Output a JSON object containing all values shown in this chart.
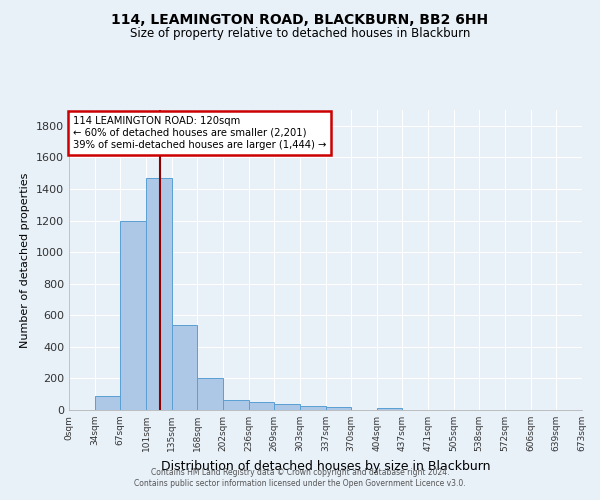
{
  "title": "114, LEAMINGTON ROAD, BLACKBURN, BB2 6HH",
  "subtitle": "Size of property relative to detached houses in Blackburn",
  "xlabel": "Distribution of detached houses by size in Blackburn",
  "ylabel": "Number of detached properties",
  "footer_line1": "Contains HM Land Registry data © Crown copyright and database right 2024.",
  "footer_line2": "Contains public sector information licensed under the Open Government Licence v3.0.",
  "annotation_line1": "114 LEAMINGTON ROAD: 120sqm",
  "annotation_line2": "← 60% of detached houses are smaller (2,201)",
  "annotation_line3": "39% of semi-detached houses are larger (1,444) →",
  "bar_edges": [
    0,
    34,
    67,
    101,
    135,
    168,
    202,
    236,
    269,
    303,
    337,
    370,
    404,
    437,
    471,
    505,
    538,
    572,
    606,
    639,
    673
  ],
  "bar_heights": [
    0,
    90,
    1200,
    1470,
    540,
    205,
    65,
    50,
    38,
    26,
    20,
    0,
    12,
    0,
    0,
    0,
    0,
    0,
    0,
    0
  ],
  "bar_color": "#adc8e6",
  "bar_edge_color": "#5a9fd4",
  "property_line_x": 120,
  "property_line_color": "#8b0000",
  "ylim": [
    0,
    1900
  ],
  "xlim": [
    0,
    673
  ],
  "bg_color": "#e8f0f8",
  "plot_bg_color": "#e8f0f8",
  "grid_color": "#ffffff",
  "tick_labels": [
    "0sqm",
    "34sqm",
    "67sqm",
    "101sqm",
    "135sqm",
    "168sqm",
    "202sqm",
    "236sqm",
    "269sqm",
    "303sqm",
    "337sqm",
    "370sqm",
    "404sqm",
    "437sqm",
    "471sqm",
    "505sqm",
    "538sqm",
    "572sqm",
    "606sqm",
    "639sqm",
    "673sqm"
  ],
  "ytick_labels": [
    "0",
    "200",
    "400",
    "600",
    "800",
    "1000",
    "1200",
    "1400",
    "1600",
    "1800"
  ],
  "ytick_vals": [
    0,
    200,
    400,
    600,
    800,
    1000,
    1200,
    1400,
    1600,
    1800
  ],
  "annotation_box_color": "#ffffff",
  "annotation_box_edge": "#cc0000",
  "title_fontsize": 10,
  "subtitle_fontsize": 8.5,
  "ylabel_fontsize": 8,
  "xlabel_fontsize": 9
}
